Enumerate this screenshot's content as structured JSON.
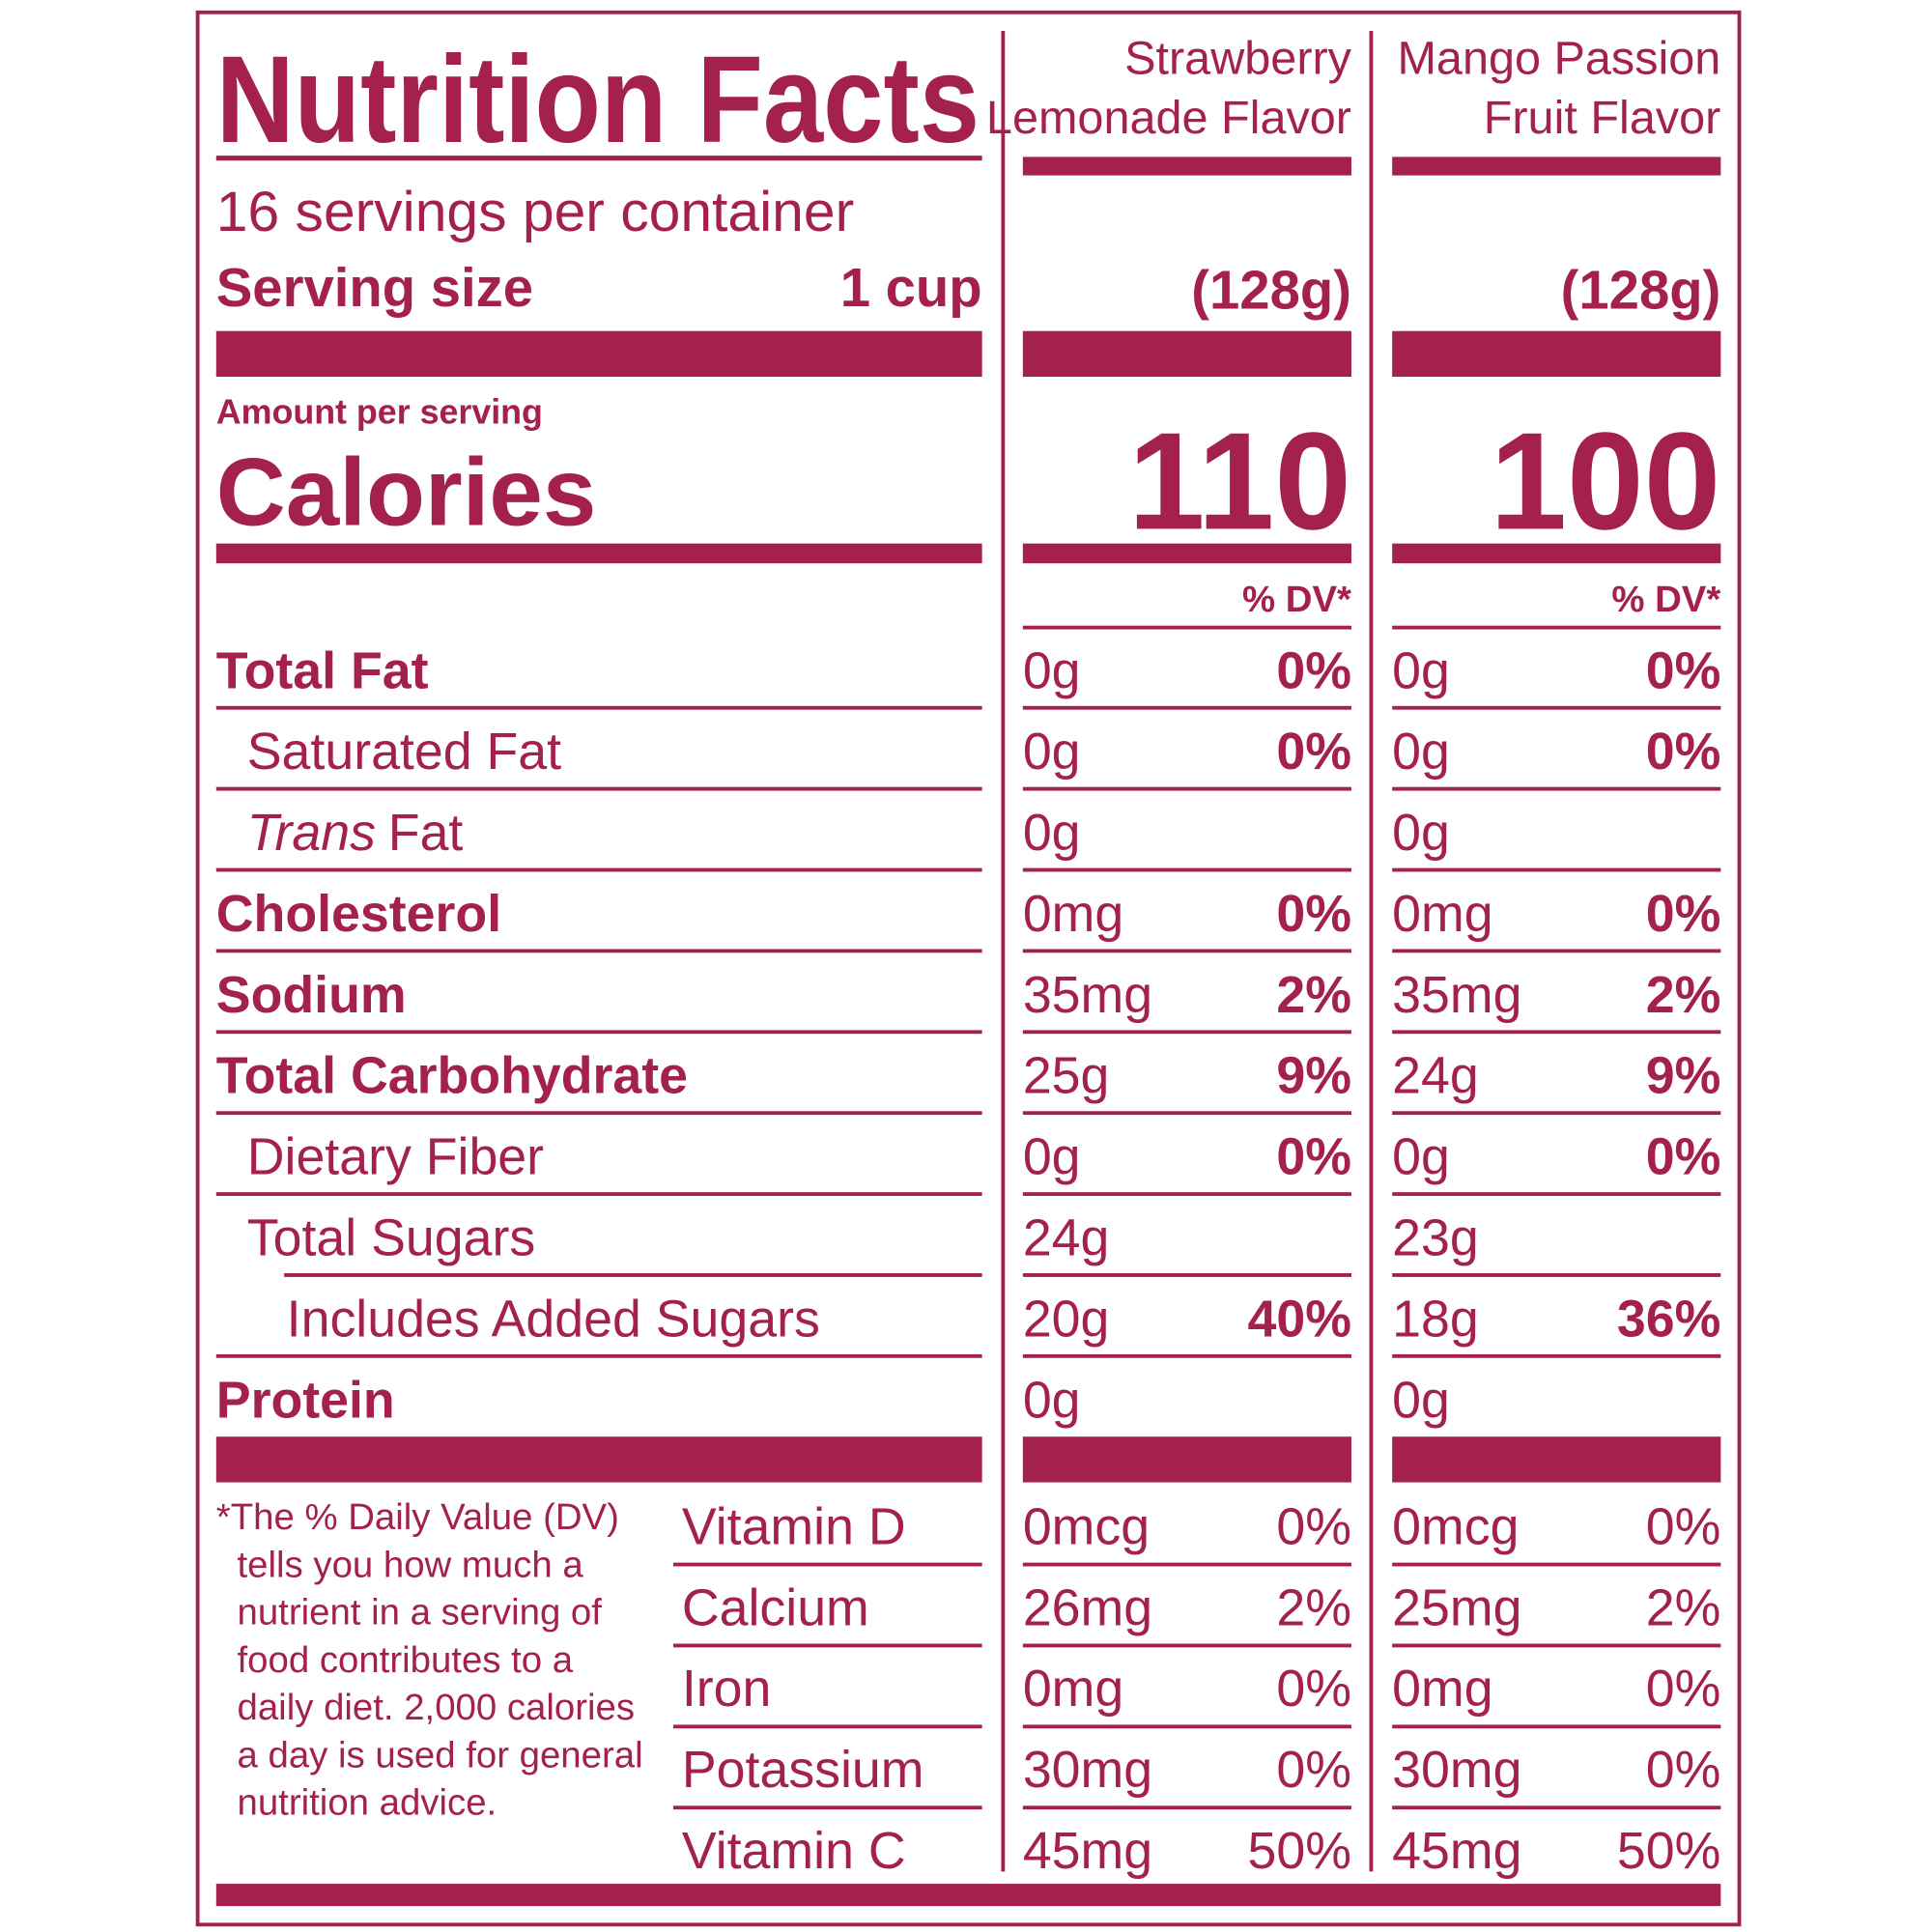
{
  "title": "Nutrition Facts",
  "servings_per_container": "16 servings per container",
  "serving_size_label": "Serving size",
  "serving_size": "1 cup",
  "amount_per_serving": "Amount per serving",
  "calories_label": "Calories",
  "nutrients": [
    {
      "label": "Total Fat",
      "bold": true,
      "indent": 0
    },
    {
      "label": "Saturated Fat",
      "bold": false,
      "indent": 1
    },
    {
      "label_italic": "Trans",
      "label": "Fat",
      "bold": false,
      "indent": 1
    },
    {
      "label": "Cholesterol",
      "bold": true,
      "indent": 0
    },
    {
      "label": "Sodium",
      "bold": true,
      "indent": 0
    },
    {
      "label": "Total Carbohydrate",
      "bold": true,
      "indent": 0
    },
    {
      "label": "Dietary Fiber",
      "bold": false,
      "indent": 1
    },
    {
      "label": "Total Sugars",
      "bold": false,
      "indent": 1
    },
    {
      "label": "Includes Added Sugars",
      "bold": false,
      "indent": 2
    },
    {
      "label": "Protein",
      "bold": true,
      "indent": 0
    }
  ],
  "vitamins": [
    "Vitamin D",
    "Calcium",
    "Iron",
    "Potassium",
    "Vitamin C"
  ],
  "footnote_lines": [
    "*The % Daily Value (DV)",
    "tells you how much a",
    "nutrient in a serving of",
    "food contributes to a",
    "daily diet. 2,000 calories",
    "a day is used for general",
    "nutrition advice."
  ],
  "products": [
    {
      "name_lines": [
        "Strawberry",
        "Lemonade Flavor"
      ],
      "serving_weight": "(128g)",
      "calories": 110,
      "dv_header": "% DV*",
      "nutrients": [
        {
          "amount": "0g",
          "dv": "0%"
        },
        {
          "amount": "0g",
          "dv": "0%"
        },
        {
          "amount": "0g",
          "dv": null
        },
        {
          "amount": "0mg",
          "dv": "0%"
        },
        {
          "amount": "35mg",
          "dv": "2%"
        },
        {
          "amount": "25g",
          "dv": "9%"
        },
        {
          "amount": "0g",
          "dv": "0%"
        },
        {
          "amount": "24g",
          "dv": null
        },
        {
          "amount": "20g",
          "dv": "40%"
        },
        {
          "amount": "0g",
          "dv": null
        }
      ],
      "vitamins": [
        {
          "amount": "0mcg",
          "dv": "0%"
        },
        {
          "amount": "26mg",
          "dv": "2%"
        },
        {
          "amount": "0mg",
          "dv": "0%"
        },
        {
          "amount": "30mg",
          "dv": "0%"
        },
        {
          "amount": "45mg",
          "dv": "50%"
        }
      ]
    },
    {
      "name_lines": [
        "Mango Passion",
        "Fruit Flavor"
      ],
      "serving_weight": "(128g)",
      "calories": 100,
      "dv_header": "% DV*",
      "nutrients": [
        {
          "amount": "0g",
          "dv": "0%"
        },
        {
          "amount": "0g",
          "dv": "0%"
        },
        {
          "amount": "0g",
          "dv": null
        },
        {
          "amount": "0mg",
          "dv": "0%"
        },
        {
          "amount": "35mg",
          "dv": "2%"
        },
        {
          "amount": "24g",
          "dv": "9%"
        },
        {
          "amount": "0g",
          "dv": "0%"
        },
        {
          "amount": "23g",
          "dv": null
        },
        {
          "amount": "18g",
          "dv": "36%"
        },
        {
          "amount": "0g",
          "dv": null
        }
      ],
      "vitamins": [
        {
          "amount": "0mcg",
          "dv": "0%"
        },
        {
          "amount": "25mg",
          "dv": "2%"
        },
        {
          "amount": "0mg",
          "dv": "0%"
        },
        {
          "amount": "30mg",
          "dv": "0%"
        },
        {
          "amount": "45mg",
          "dv": "50%"
        }
      ]
    }
  ]
}
